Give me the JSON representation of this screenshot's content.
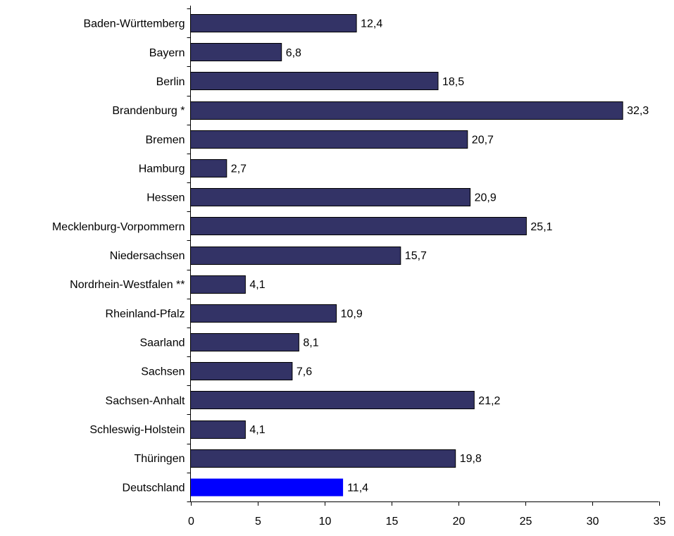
{
  "chart_data": {
    "type": "bar",
    "orientation": "horizontal",
    "categories": [
      "Baden-Württemberg",
      "Bayern",
      "Berlin",
      "Brandenburg *",
      "Bremen",
      "Hamburg",
      "Hessen",
      "Mecklenburg-Vorpommern",
      "Niedersachsen",
      "Nordrhein-Westfalen **",
      "Rheinland-Pfalz",
      "Saarland",
      "Sachsen",
      "Sachsen-Anhalt",
      "Schleswig-Holstein",
      "Thüringen",
      "Deutschland"
    ],
    "values": [
      12.4,
      6.8,
      18.5,
      32.3,
      20.7,
      2.7,
      20.9,
      25.1,
      15.7,
      4.1,
      10.9,
      8.1,
      7.6,
      21.2,
      4.1,
      19.8,
      11.4
    ],
    "value_labels": [
      "12,4",
      "6,8",
      "18,5",
      "32,3",
      "20,7",
      "2,7",
      "20,9",
      "25,1",
      "15,7",
      "4,1",
      "10,9",
      "8,1",
      "7,6",
      "21,2",
      "4,1",
      "19,8",
      "11,4"
    ],
    "highlight_category": "Deutschland",
    "xlim": [
      0,
      35
    ],
    "xticks": [
      0,
      5,
      10,
      15,
      20,
      25,
      30,
      35
    ],
    "grid": false,
    "legend": "none",
    "title": "",
    "xlabel": "",
    "ylabel": ""
  },
  "colors": {
    "bar": "#333366",
    "highlight": "#0000ff",
    "outline": "#000000"
  }
}
